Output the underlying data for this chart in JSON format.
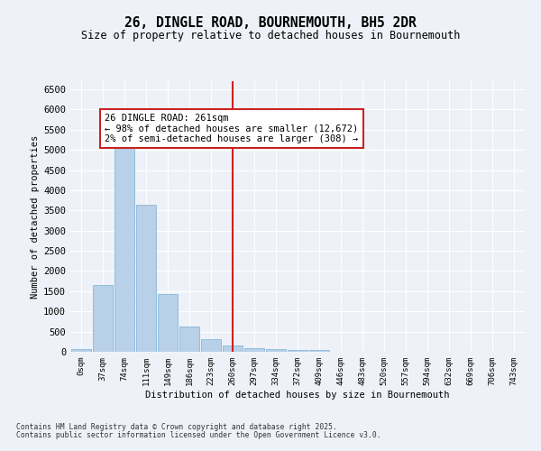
{
  "title": "26, DINGLE ROAD, BOURNEMOUTH, BH5 2DR",
  "subtitle": "Size of property relative to detached houses in Bournemouth",
  "xlabel": "Distribution of detached houses by size in Bournemouth",
  "ylabel": "Number of detached properties",
  "footnote1": "Contains HM Land Registry data © Crown copyright and database right 2025.",
  "footnote2": "Contains public sector information licensed under the Open Government Licence v3.0.",
  "annotation_title": "26 DINGLE ROAD: 261sqm",
  "annotation_line1": "← 98% of detached houses are smaller (12,672)",
  "annotation_line2": "2% of semi-detached houses are larger (308) →",
  "bar_color": "#b8d0e8",
  "bar_edge_color": "#7aafd4",
  "highlight_color": "#cc2222",
  "bg_color": "#eef2f8",
  "categories": [
    "0sqm",
    "37sqm",
    "74sqm",
    "111sqm",
    "149sqm",
    "186sqm",
    "223sqm",
    "260sqm",
    "297sqm",
    "334sqm",
    "372sqm",
    "409sqm",
    "446sqm",
    "483sqm",
    "520sqm",
    "557sqm",
    "594sqm",
    "632sqm",
    "669sqm",
    "706sqm",
    "743sqm"
  ],
  "values": [
    60,
    1650,
    5100,
    3630,
    1430,
    620,
    310,
    150,
    100,
    70,
    55,
    35,
    0,
    0,
    0,
    0,
    0,
    0,
    0,
    0,
    0
  ],
  "highlight_bin_index": 7,
  "ylim": [
    0,
    6700
  ],
  "yticks": [
    0,
    500,
    1000,
    1500,
    2000,
    2500,
    3000,
    3500,
    4000,
    4500,
    5000,
    5500,
    6000,
    6500
  ]
}
